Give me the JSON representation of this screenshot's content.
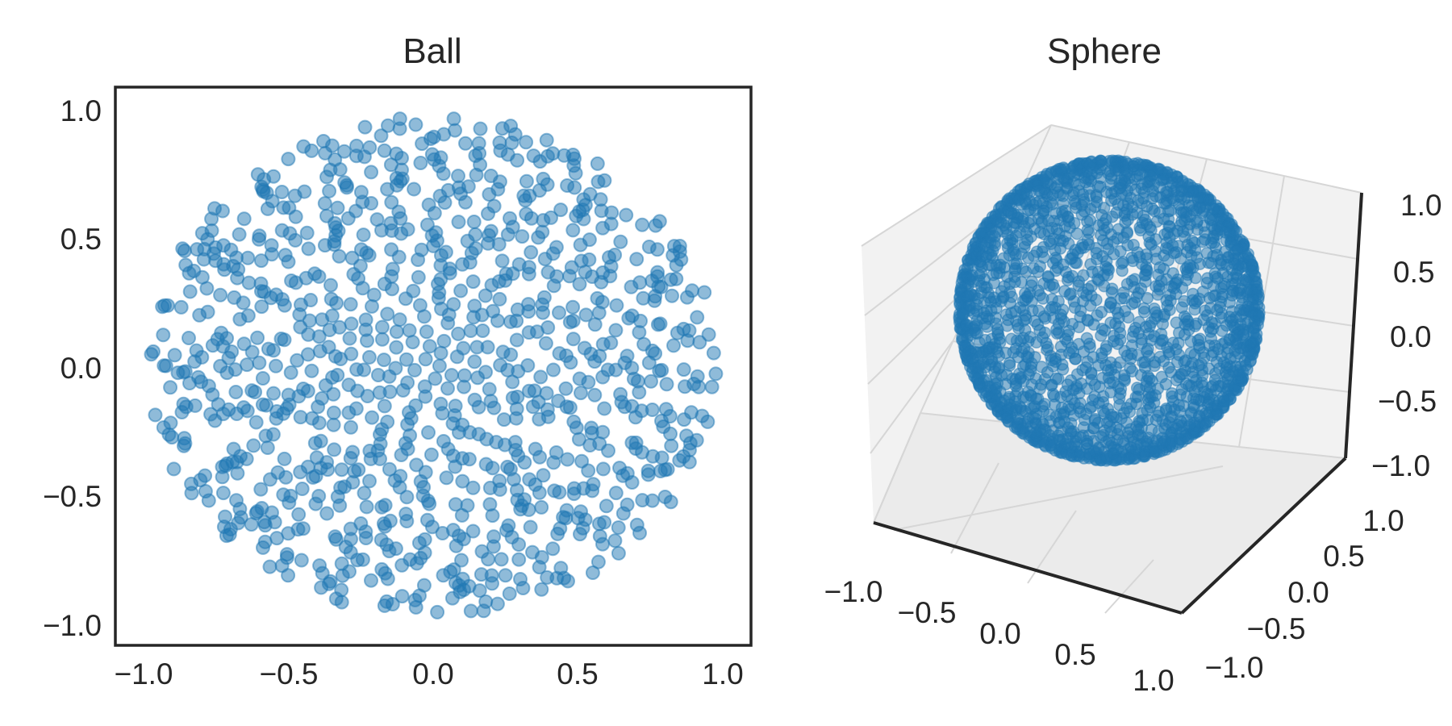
{
  "chart_data": [
    {
      "type": "scatter",
      "title": "Ball",
      "xlabel": "",
      "ylabel": "",
      "xlim": [
        -1.1,
        1.1
      ],
      "ylim": [
        -1.1,
        1.1
      ],
      "xticks": [
        "−1.0",
        "−0.5",
        "0.0",
        "0.5",
        "1.0"
      ],
      "yticks": [
        "−1.0",
        "−0.5",
        "0.0",
        "0.5",
        "1.0"
      ],
      "grid": false,
      "marker_color": "#1f77b4",
      "marker_alpha": 0.5,
      "point_count": 1000,
      "distribution": "points filling the unit disk (x^2 + y^2 <= 1)",
      "sample_points": [
        {
          "x": -0.05,
          "y": 0.97
        },
        {
          "x": 0.12,
          "y": 0.96
        },
        {
          "x": 0.3,
          "y": 0.93
        },
        {
          "x": -0.35,
          "y": 0.92
        },
        {
          "x": 0.6,
          "y": 0.78
        },
        {
          "x": 0.95,
          "y": 0.25
        },
        {
          "x": 0.98,
          "y": -0.12
        },
        {
          "x": -0.98,
          "y": 0.02
        },
        {
          "x": -0.95,
          "y": 0.15
        },
        {
          "x": -0.1,
          "y": 0.4
        },
        {
          "x": -0.4,
          "y": -0.05
        },
        {
          "x": 0.05,
          "y": -0.35
        },
        {
          "x": 0.35,
          "y": -0.45
        },
        {
          "x": 0.7,
          "y": -0.5
        },
        {
          "x": -0.55,
          "y": -0.7
        },
        {
          "x": -0.3,
          "y": -0.9
        },
        {
          "x": 0.05,
          "y": -0.98
        },
        {
          "x": 0.3,
          "y": -0.95
        },
        {
          "x": -0.75,
          "y": 0.55
        },
        {
          "x": 0.85,
          "y": -0.35
        }
      ]
    },
    {
      "type": "scatter",
      "subtype": "3d",
      "title": "Sphere",
      "xlim": [
        -1.0,
        1.0
      ],
      "ylim": [
        -1.0,
        1.0
      ],
      "zlim": [
        -1.0,
        1.0
      ],
      "xticks": [
        "−1.0",
        "−0.5",
        "0.0",
        "0.5",
        "1.0"
      ],
      "yticks": [
        "−1.0",
        "−0.5",
        "0.0",
        "0.5",
        "1.0"
      ],
      "zticks": [
        "−1.0",
        "−0.5",
        "0.0",
        "0.5",
        "1.0"
      ],
      "grid": true,
      "pane_color": "#f2f2f2",
      "marker_color": "#1f77b4",
      "marker_alpha": 0.5,
      "point_count": 2000,
      "distribution": "points on the surface of the unit sphere (x^2 + y^2 + z^2 = 1)",
      "sample_points": [
        {
          "x": 0.0,
          "y": 0.0,
          "z": 1.0
        },
        {
          "x": 0.0,
          "y": 0.0,
          "z": -1.0
        },
        {
          "x": 1.0,
          "y": 0.0,
          "z": 0.0
        },
        {
          "x": -1.0,
          "y": 0.0,
          "z": 0.0
        },
        {
          "x": 0.0,
          "y": 1.0,
          "z": 0.0
        },
        {
          "x": 0.0,
          "y": -1.0,
          "z": 0.0
        },
        {
          "x": 0.58,
          "y": 0.58,
          "z": 0.58
        },
        {
          "x": -0.58,
          "y": -0.58,
          "z": -0.58
        }
      ]
    }
  ]
}
